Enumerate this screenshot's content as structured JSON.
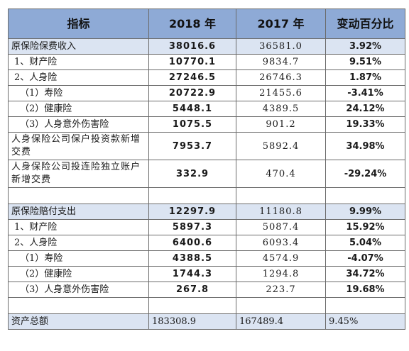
{
  "header": {
    "col0": "指标",
    "col1": "2018 年",
    "col2": "2017 年",
    "col3": "变动百分比"
  },
  "section1": [
    {
      "label": "原保险保费收入",
      "v2018": "38016.6",
      "v2017": "36581.0",
      "pct": "3.92%",
      "indent": 0
    },
    {
      "label": "1、财产险",
      "v2018": "10770.1",
      "v2017": "9834.7",
      "pct": "9.51%",
      "indent": 1
    },
    {
      "label": "2、人身险",
      "v2018": "27246.5",
      "v2017": "26746.3",
      "pct": "1.87%",
      "indent": 1
    },
    {
      "label": "（1）寿险",
      "v2018": "20722.9",
      "v2017": "21455.6",
      "pct": "-3.41%",
      "indent": 2
    },
    {
      "label": "（2）健康险",
      "v2018": "5448.1",
      "v2017": "4389.5",
      "pct": "24.12%",
      "indent": 2
    },
    {
      "label": "（3）人身意外伤害险",
      "v2018": "1075.5",
      "v2017": "901.2",
      "pct": "19.33%",
      "indent": 2
    }
  ],
  "section1_tall": [
    {
      "label": "人身保险公司保户投资款新增交费",
      "v2018": "7953.7",
      "v2017": "5892.4",
      "pct": "34.98%"
    },
    {
      "label": "人身保险公司投连险独立账户新增交费",
      "v2018": "332.9",
      "v2017": "470.4",
      "pct": "-29.24%"
    }
  ],
  "section2": [
    {
      "label": "原保险赔付支出",
      "v2018": "12297.9",
      "v2017": "11180.8",
      "pct": "9.99%",
      "indent": 0
    },
    {
      "label": "1、财产险",
      "v2018": "5897.3",
      "v2017": "5087.4",
      "pct": "15.92%",
      "indent": 1
    },
    {
      "label": "2、人身险",
      "v2018": "6400.6",
      "v2017": "6093.4",
      "pct": "5.04%",
      "indent": 1
    },
    {
      "label": "（1）寿险",
      "v2018": "4388.5",
      "v2017": "4574.9",
      "pct": "-4.07%",
      "indent": 2
    },
    {
      "label": "（2）健康险",
      "v2018": "1744.3",
      "v2017": "1294.8",
      "pct": "34.72%",
      "indent": 2
    },
    {
      "label": "（3）人身意外伤害险",
      "v2018": "267.8",
      "v2017": "223.7",
      "pct": "19.68%",
      "indent": 2
    }
  ],
  "total": {
    "label": "资产总额",
    "v2018": "183308.9",
    "v2017": "167489.4",
    "pct": "9.45%"
  }
}
